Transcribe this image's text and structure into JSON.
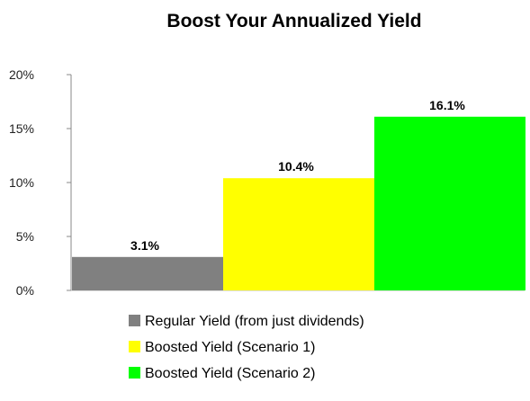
{
  "chart_data": {
    "type": "bar",
    "title": "Boost Your Annualized Yield",
    "xlabel": "",
    "ylabel": "",
    "ylim": [
      0,
      20
    ],
    "yticks": [
      "0%",
      "5%",
      "10%",
      "15%",
      "20%"
    ],
    "ytick_values": [
      0,
      5,
      10,
      15,
      20
    ],
    "grid": false,
    "legend_position": "bottom",
    "series": [
      {
        "name": "Regular Yield (from just dividends)",
        "value": 3.1,
        "label": "3.1%",
        "color": "#808080"
      },
      {
        "name": "Boosted Yield (Scenario 1)",
        "value": 10.4,
        "label": "10.4%",
        "color": "#ffff00"
      },
      {
        "name": "Boosted Yield (Scenario 2)",
        "value": 16.1,
        "label": "16.1%",
        "color": "#00ff00"
      }
    ]
  }
}
